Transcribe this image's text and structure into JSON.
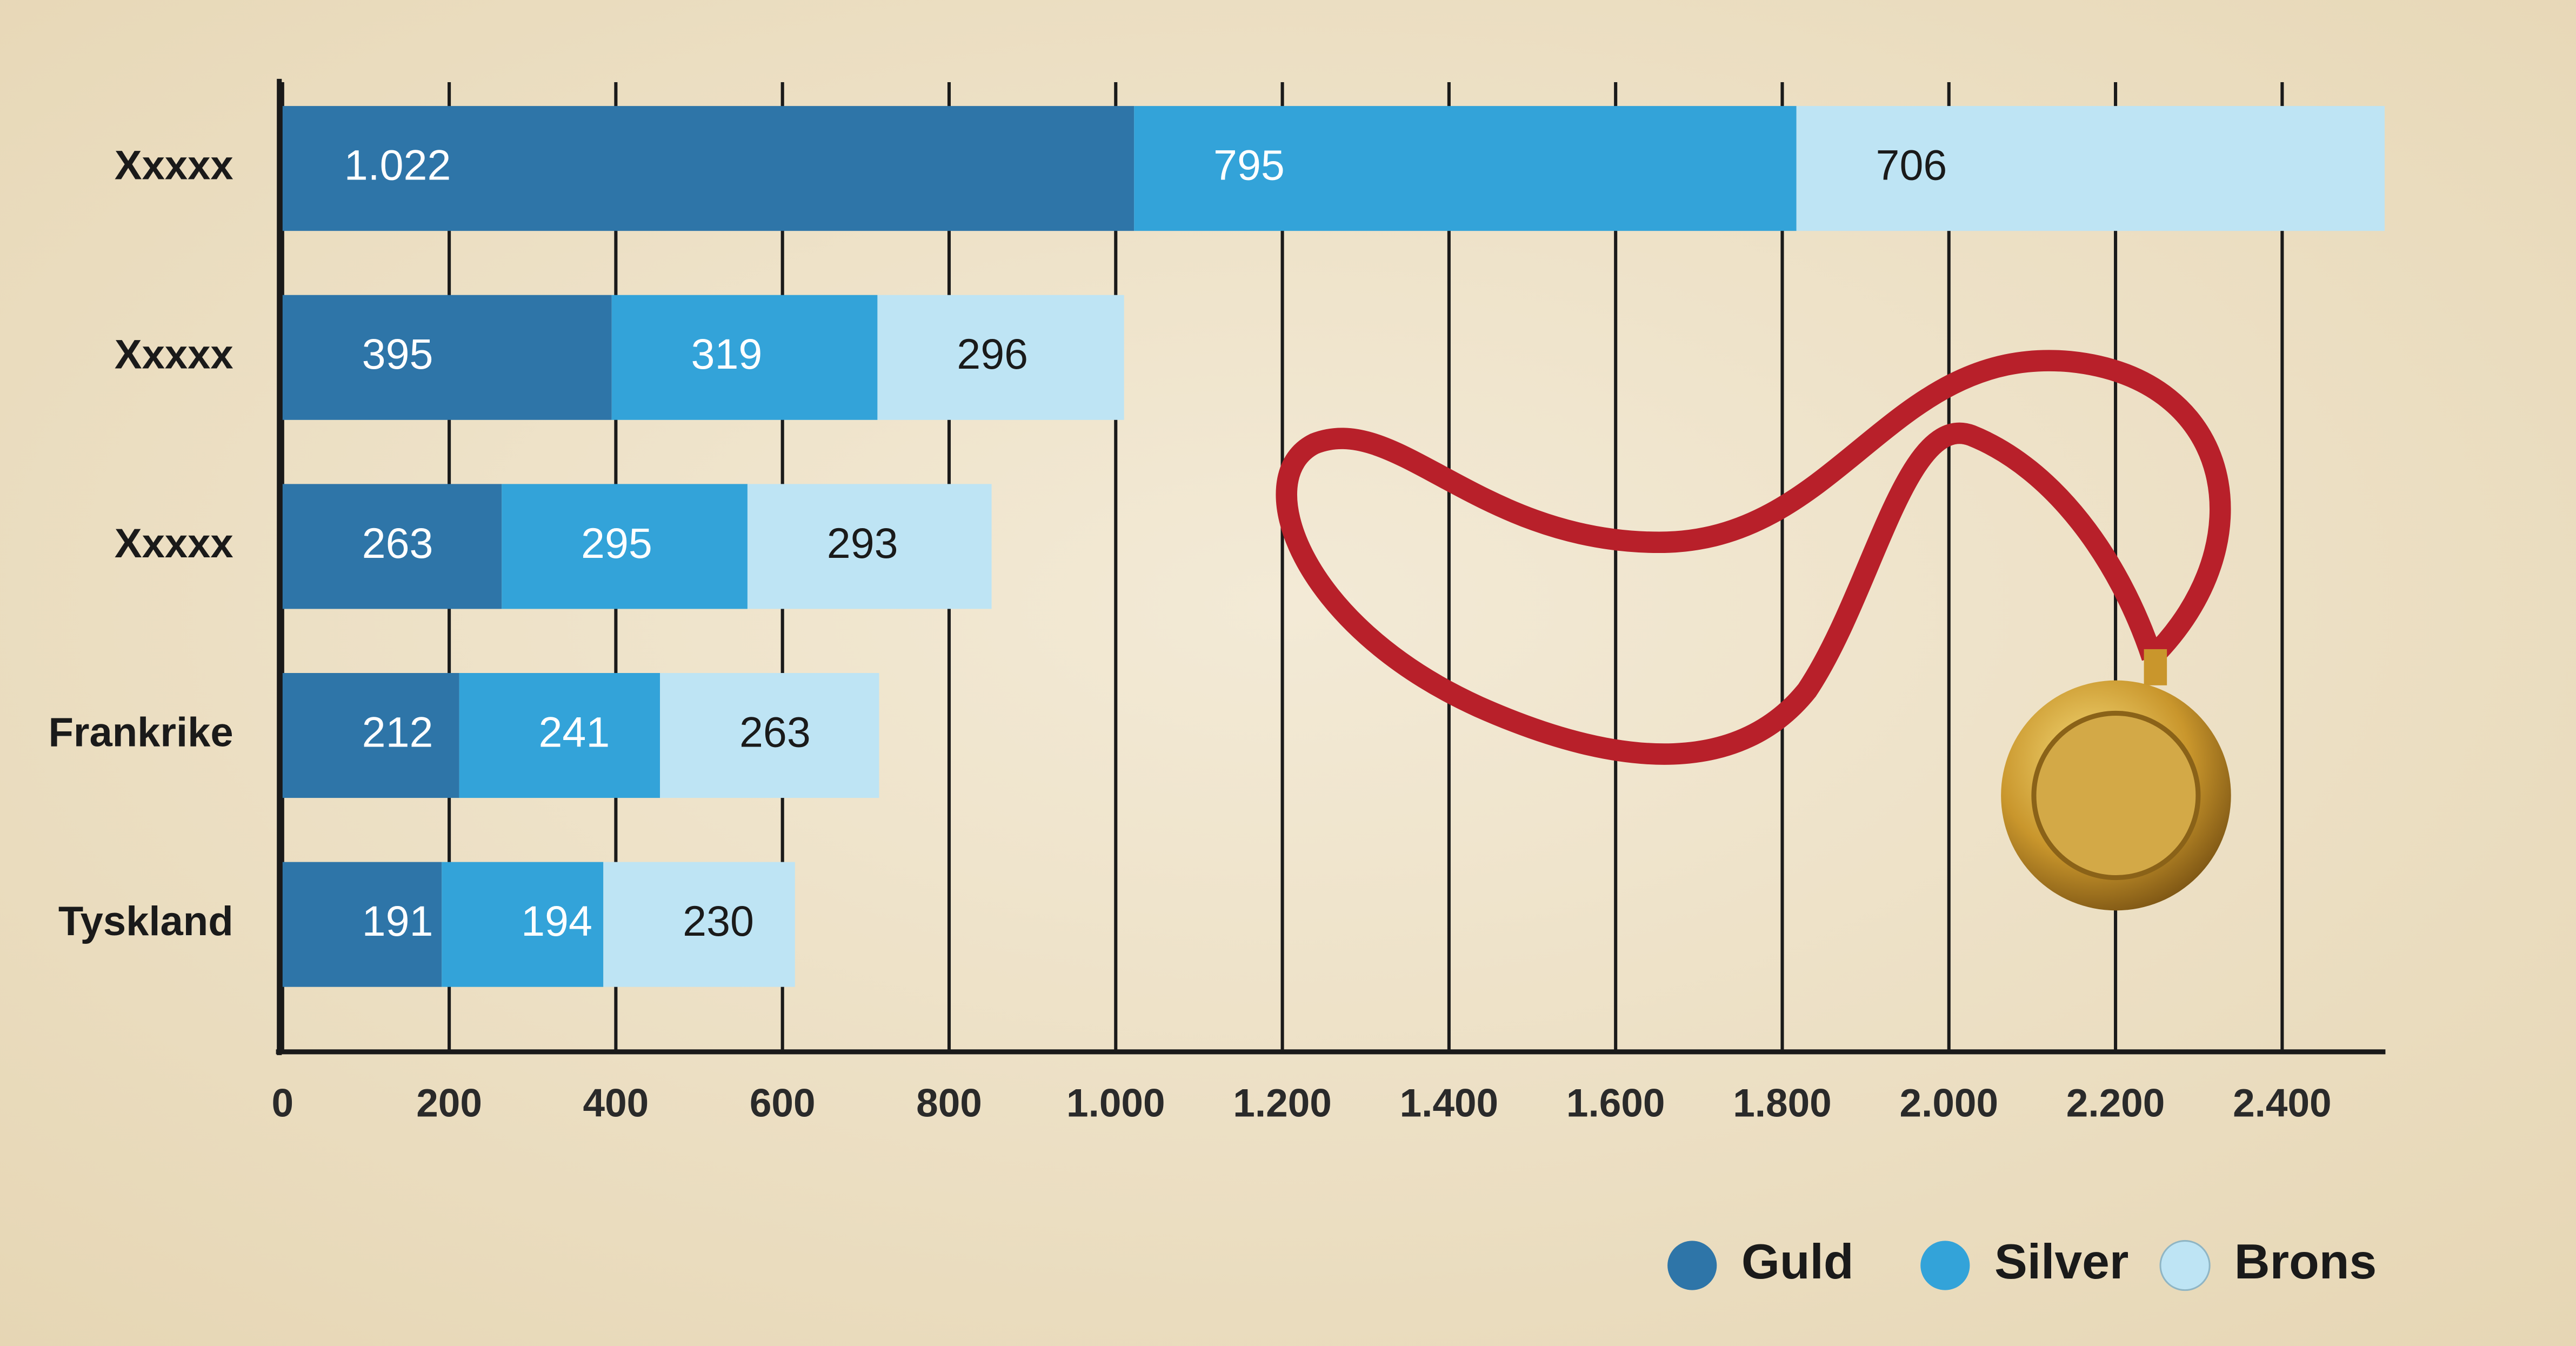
{
  "chart_data": {
    "type": "stacked-bar-horizontal",
    "categories": [
      "Xxxxx",
      "Xxxxx",
      "Xxxxx",
      "Frankrike",
      "Tyskland"
    ],
    "series": [
      {
        "name": "Guld",
        "color": "#2e75a8",
        "values": [
          1022,
          395,
          263,
          212,
          191
        ],
        "value_labels": [
          "1.022",
          "395",
          "263",
          "212",
          "191"
        ]
      },
      {
        "name": "Silver",
        "color": "#33a3d9",
        "values": [
          795,
          319,
          295,
          241,
          194
        ]
      },
      {
        "name": "Brons",
        "color": "#bee4f4",
        "values": [
          706,
          296,
          293,
          263,
          230
        ]
      }
    ],
    "xlim": [
      0,
      2520
    ],
    "xticks": [
      0,
      200,
      400,
      600,
      800,
      {
        "value": 1000,
        "label": "1.000"
      },
      {
        "value": 1200,
        "label": "1.200"
      },
      {
        "value": 1400,
        "label": "1.400"
      },
      {
        "value": 1600,
        "label": "1.600"
      },
      {
        "value": 1800,
        "label": "1.800"
      },
      {
        "value": 2000,
        "label": "2.000"
      },
      {
        "value": 2200,
        "label": "2.200"
      },
      {
        "value": 2400,
        "label": "2.400"
      }
    ],
    "grid": true,
    "legend": "bottom-right"
  }
}
